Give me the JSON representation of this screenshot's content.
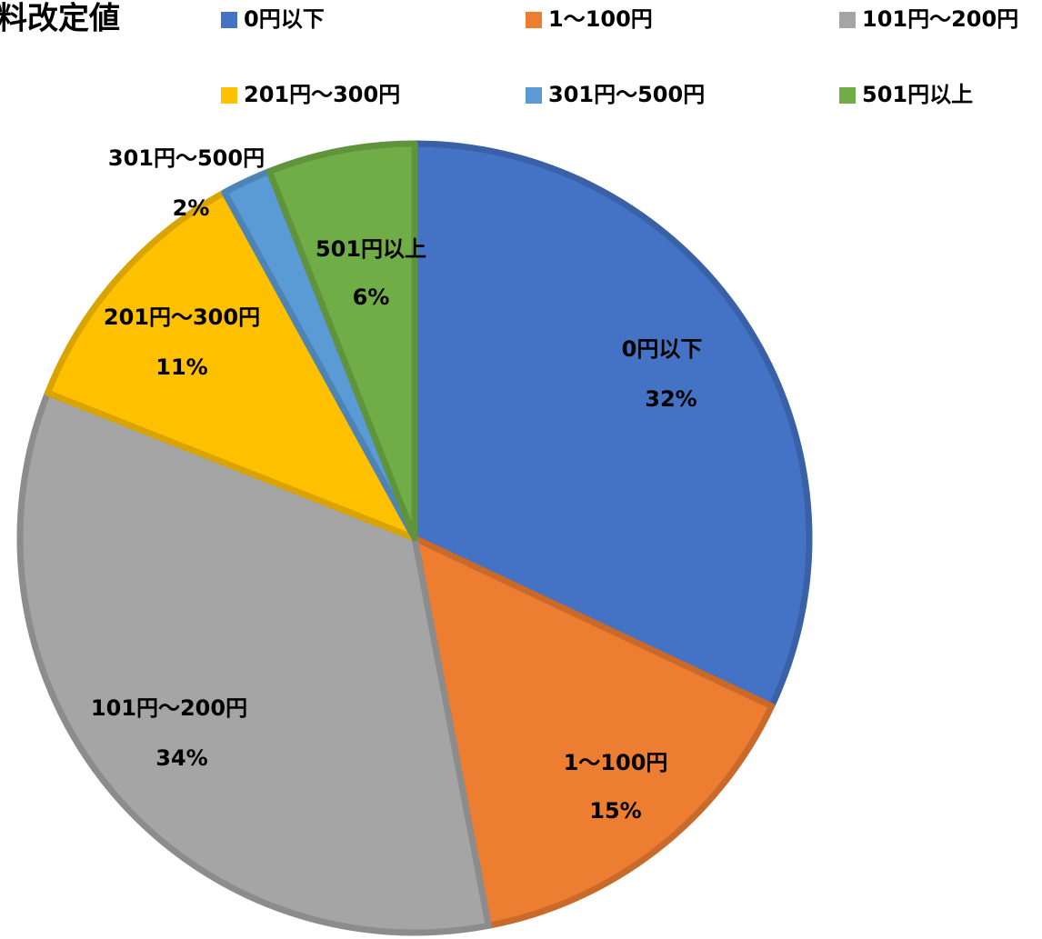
{
  "chart_data": {
    "type": "pie",
    "title": "料改定値",
    "categories": [
      "0円以下",
      "1～100円",
      "101円～200円",
      "201円～300円",
      "301円～500円",
      "501円以上"
    ],
    "values": [
      32,
      15,
      34,
      11,
      2,
      6
    ],
    "value_labels": [
      "32%",
      "15%",
      "34%",
      "11%",
      "2%",
      "6%"
    ],
    "colors": [
      "#4472c4",
      "#ed7d31",
      "#a5a5a5",
      "#ffc000",
      "#5b9bd5",
      "#70ad47"
    ],
    "legend": "top"
  }
}
